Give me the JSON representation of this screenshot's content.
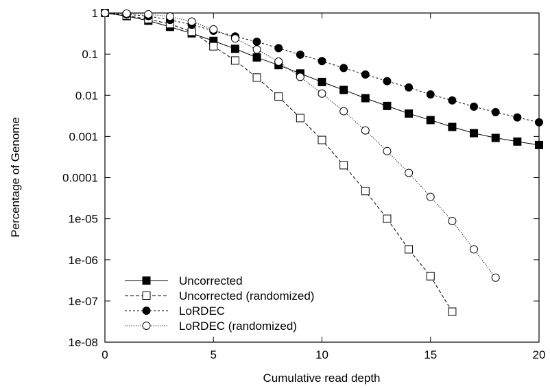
{
  "chart_data": {
    "type": "line",
    "xlabel": "Cumulative read depth",
    "ylabel": "Percentage of Genome",
    "xlim": [
      0,
      20
    ],
    "ylim": [
      1e-08,
      1
    ],
    "yscale": "log",
    "x_ticks": [
      0,
      5,
      10,
      15,
      20
    ],
    "x_tick_labels": [
      "0",
      "5",
      "10",
      "15",
      "20"
    ],
    "y_ticks": [
      1,
      0.1,
      0.01,
      0.001,
      0.0001,
      1e-05,
      1e-06,
      1e-07,
      1e-08
    ],
    "y_tick_labels": [
      "1",
      "0.1",
      "0.01",
      "0.001",
      "0.0001",
      "1e-05",
      "1e-06",
      "1e-07",
      "1e-08"
    ],
    "grid": false,
    "legend_position": "bottom-left",
    "series": [
      {
        "name": "Uncorrected",
        "marker": "square-filled",
        "dash": "solid",
        "x": [
          0,
          1,
          2,
          3,
          4,
          5,
          6,
          7,
          8,
          9,
          10,
          11,
          12,
          13,
          14,
          15,
          16,
          17,
          18,
          19,
          20
        ],
        "y": [
          1,
          0.84,
          0.65,
          0.46,
          0.32,
          0.21,
          0.135,
          0.083,
          0.054,
          0.034,
          0.021,
          0.0135,
          0.0085,
          0.0055,
          0.0036,
          0.0025,
          0.0017,
          0.0012,
          0.00092,
          0.00075,
          0.00062
        ]
      },
      {
        "name": "Uncorrected (randomized)",
        "marker": "square-open",
        "dash": "dashed",
        "x": [
          0,
          1,
          2,
          3,
          4,
          5,
          6,
          7,
          8,
          9,
          10,
          11,
          12,
          13,
          14,
          15,
          16
        ],
        "y": [
          1,
          0.86,
          0.71,
          0.54,
          0.35,
          0.155,
          0.07,
          0.027,
          0.0093,
          0.0028,
          0.00082,
          0.0002,
          4.7e-05,
          1e-05,
          1.8e-06,
          4e-07,
          5.5e-08
        ]
      },
      {
        "name": "LoRDEC",
        "marker": "circle-filled",
        "dash": "dashed-short",
        "x": [
          0,
          1,
          2,
          3,
          4,
          5,
          6,
          7,
          8,
          9,
          10,
          11,
          12,
          13,
          14,
          15,
          16,
          17,
          18,
          19,
          20
        ],
        "y": [
          1,
          0.92,
          0.84,
          0.68,
          0.52,
          0.37,
          0.27,
          0.2,
          0.14,
          0.097,
          0.068,
          0.046,
          0.032,
          0.022,
          0.0155,
          0.0105,
          0.0075,
          0.0053,
          0.0039,
          0.0029,
          0.0022
        ]
      },
      {
        "name": "LoRDEC (randomized)",
        "marker": "circle-open",
        "dash": "dotted",
        "x": [
          0,
          1,
          2,
          3,
          4,
          5,
          6,
          7,
          8,
          9,
          10,
          11,
          12,
          13,
          14,
          15,
          16,
          17,
          18
        ],
        "y": [
          1,
          0.97,
          0.93,
          0.82,
          0.62,
          0.4,
          0.24,
          0.13,
          0.066,
          0.028,
          0.011,
          0.0041,
          0.0014,
          0.00044,
          0.00013,
          3.4e-05,
          8.8e-06,
          1.8e-06,
          3.7e-07
        ]
      }
    ]
  }
}
